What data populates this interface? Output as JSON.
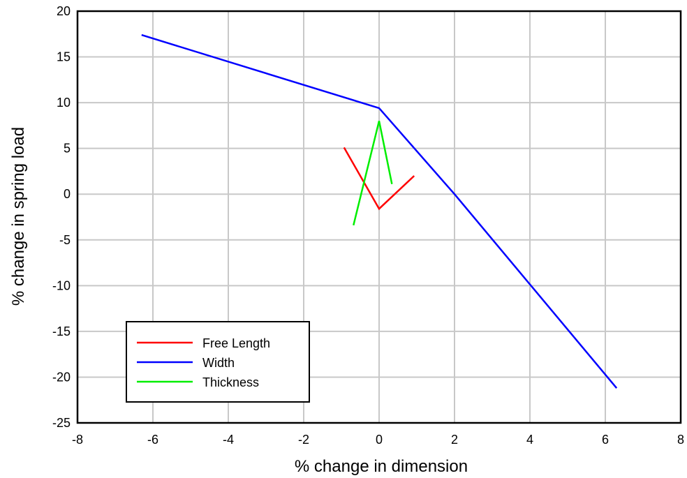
{
  "chart_data": {
    "type": "line",
    "xlabel": "% change in dimension",
    "ylabel": "% change in spring load",
    "xlim": [
      -8,
      8
    ],
    "ylim": [
      -25,
      20
    ],
    "xticks": [
      -8,
      -6,
      -4,
      -2,
      0,
      2,
      4,
      6,
      8
    ],
    "yticks": [
      20,
      15,
      10,
      5,
      0,
      -5,
      -10,
      -15,
      -20,
      -25
    ],
    "grid": true,
    "legend_position": "bottom-left",
    "series": [
      {
        "name": "Free Length",
        "color": "#ff0000",
        "x": [
          -0.93,
          0.0,
          0.93
        ],
        "y": [
          5.1,
          -1.6,
          2.0
        ]
      },
      {
        "name": "Width",
        "color": "#0000ff",
        "x": [
          -6.3,
          0.0,
          2.0,
          6.3
        ],
        "y": [
          17.4,
          9.4,
          0.0,
          -21.2
        ]
      },
      {
        "name": "Thickness",
        "color": "#00ee00",
        "x": [
          -0.68,
          0.0,
          0.34
        ],
        "y": [
          -3.4,
          8.0,
          1.1
        ]
      }
    ]
  }
}
